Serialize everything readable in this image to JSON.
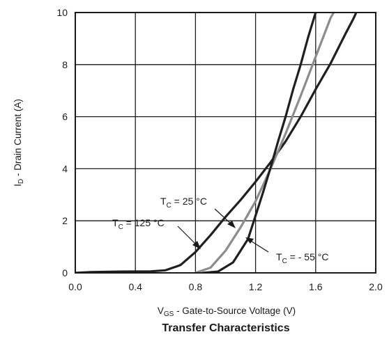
{
  "chart_data": {
    "type": "line",
    "title": "Transfer Characteristics",
    "xlabel": {
      "main": "V",
      "sub": "GS",
      "rest": " - Gate-to-Source Voltage (V)"
    },
    "ylabel": {
      "main": "I",
      "sub": "D",
      "rest": " - Drain Current (A)"
    },
    "xlim": [
      0.0,
      2.0
    ],
    "ylim": [
      0,
      10
    ],
    "xticks": [
      "0.0",
      "0.4",
      "0.8",
      "1.2",
      "1.6",
      "2.0"
    ],
    "yticks": [
      "0",
      "2",
      "4",
      "6",
      "8",
      "10"
    ],
    "grid": true,
    "series": [
      {
        "name": "TC = 125 °C",
        "label": {
          "main": "T",
          "sub": "C",
          "rest": " = 125 °C"
        },
        "color": "#1f1f1f",
        "points": [
          [
            0.0,
            0.0
          ],
          [
            0.1,
            0.03
          ],
          [
            0.3,
            0.05
          ],
          [
            0.5,
            0.06
          ],
          [
            0.6,
            0.1
          ],
          [
            0.7,
            0.3
          ],
          [
            0.8,
            0.8
          ],
          [
            0.9,
            1.45
          ],
          [
            1.0,
            2.15
          ],
          [
            1.1,
            2.8
          ],
          [
            1.2,
            3.5
          ],
          [
            1.3,
            4.25
          ],
          [
            1.4,
            5.05
          ],
          [
            1.5,
            6.0
          ],
          [
            1.6,
            7.05
          ],
          [
            1.7,
            8.05
          ],
          [
            1.8,
            9.2
          ],
          [
            1.85,
            9.75
          ],
          [
            1.87,
            10.0
          ]
        ]
      },
      {
        "name": "TC = 25 °C",
        "label": {
          "main": "T",
          "sub": "C",
          "rest": " = 25 °C"
        },
        "color": "#8c8c8c",
        "points": [
          [
            0.8,
            0.0
          ],
          [
            0.9,
            0.2
          ],
          [
            1.0,
            0.85
          ],
          [
            1.1,
            1.75
          ],
          [
            1.2,
            2.75
          ],
          [
            1.3,
            4.0
          ],
          [
            1.4,
            5.35
          ],
          [
            1.5,
            6.8
          ],
          [
            1.6,
            8.3
          ],
          [
            1.7,
            9.8
          ],
          [
            1.72,
            10.0
          ]
        ]
      },
      {
        "name": "TC = - 55 °C",
        "label": {
          "main": "T",
          "sub": "C",
          "rest": " = - 55 °C"
        },
        "color": "#1f1f1f",
        "points": [
          [
            0.85,
            0.0
          ],
          [
            0.95,
            0.05
          ],
          [
            1.05,
            0.4
          ],
          [
            1.15,
            1.3
          ],
          [
            1.2,
            2.2
          ],
          [
            1.25,
            3.1
          ],
          [
            1.3,
            4.05
          ],
          [
            1.35,
            5.05
          ],
          [
            1.4,
            6.0
          ],
          [
            1.45,
            7.05
          ],
          [
            1.5,
            8.0
          ],
          [
            1.55,
            9.05
          ],
          [
            1.6,
            10.0
          ]
        ]
      }
    ]
  }
}
